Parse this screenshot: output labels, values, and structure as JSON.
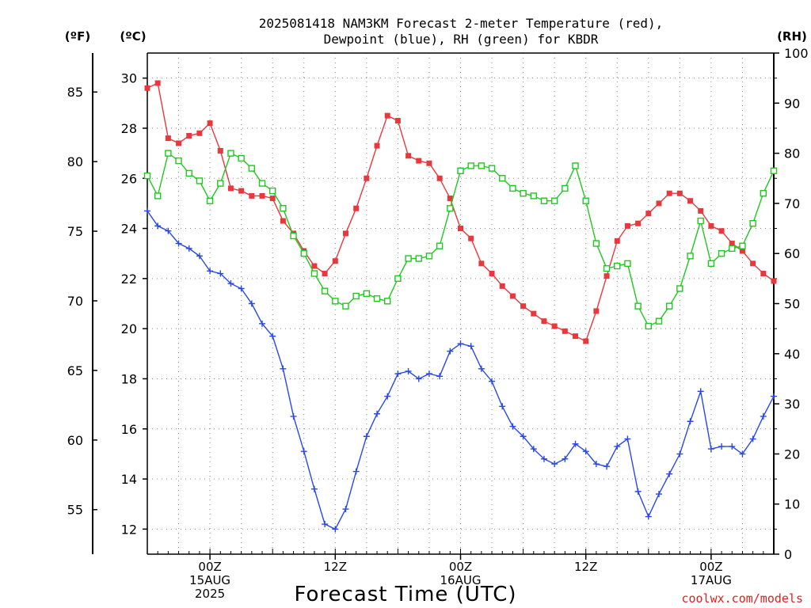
{
  "title": {
    "line1": "2025081418 NAM3KM Forecast 2-meter Temperature (red),",
    "line2": "Dewpoint (blue), RH (green) for KBDR"
  },
  "units": {
    "f": "(ºF)",
    "c": "(ºC)",
    "rh": "(RH)"
  },
  "xlabel": "Forecast Time (UTC)",
  "credit": "coolwx.com/models",
  "colors": {
    "temp": "#e8383c",
    "dew": "#2848e8",
    "rh": "#20c820",
    "grid": "#888888"
  },
  "chart_data": {
    "type": "line",
    "title": "2025081418 NAM3KM Forecast 2-meter Temperature (red), Dewpoint (blue), RH (green) for KBDR",
    "xlabel": "Forecast Time (UTC)",
    "x_units": "hours since 2025-08-14 18Z",
    "x": [
      0,
      1,
      2,
      3,
      4,
      5,
      6,
      7,
      8,
      9,
      10,
      11,
      12,
      13,
      14,
      15,
      16,
      17,
      18,
      19,
      20,
      21,
      22,
      23,
      24,
      25,
      26,
      27,
      28,
      29,
      30,
      31,
      32,
      33,
      34,
      35,
      36,
      37,
      38,
      39,
      40,
      41,
      42,
      43,
      44,
      45,
      46,
      47,
      48,
      49,
      50,
      51,
      52,
      53,
      54,
      55,
      56,
      57,
      58,
      59,
      60
    ],
    "xlim": [
      0,
      60
    ],
    "x_ticks": [
      {
        "hour": 6,
        "lines": [
          "00Z",
          "15AUG",
          "2025"
        ]
      },
      {
        "hour": 18,
        "lines": [
          "12Z"
        ]
      },
      {
        "hour": 30,
        "lines": [
          "00Z",
          "16AUG"
        ]
      },
      {
        "hour": 42,
        "lines": [
          "12Z"
        ]
      },
      {
        "hour": 54,
        "lines": [
          "00Z",
          "17AUG"
        ]
      }
    ],
    "left_axis": {
      "label": "(ºC)",
      "ylim": [
        11,
        31
      ],
      "ticks": [
        12,
        14,
        16,
        18,
        20,
        22,
        24,
        26,
        28,
        30
      ]
    },
    "far_left_axis": {
      "label": "(ºF)",
      "ticks": [
        55,
        60,
        65,
        70,
        75,
        80,
        85
      ]
    },
    "right_axis": {
      "label": "(RH)",
      "ylim": [
        0,
        100
      ],
      "ticks": [
        0,
        10,
        20,
        30,
        40,
        50,
        60,
        70,
        80,
        90,
        100
      ]
    },
    "series": [
      {
        "name": "2-meter Temperature",
        "axis": "left",
        "marker": "filled-square",
        "values": [
          29.6,
          29.8,
          27.6,
          27.4,
          27.7,
          27.8,
          28.2,
          27.1,
          25.6,
          25.5,
          25.3,
          25.3,
          25.2,
          24.3,
          23.8,
          23.1,
          22.5,
          22.2,
          22.7,
          23.8,
          24.8,
          26.0,
          27.3,
          28.5,
          28.3,
          26.9,
          26.7,
          26.6,
          26.0,
          25.2,
          24.0,
          23.6,
          22.6,
          22.2,
          21.7,
          21.3,
          20.9,
          20.6,
          20.3,
          20.1,
          19.9,
          19.7,
          19.5,
          20.7,
          22.1,
          23.5,
          24.1,
          24.2,
          24.6,
          25.0,
          25.4,
          25.4,
          25.1,
          24.7,
          24.1,
          23.9,
          23.4,
          23.1,
          22.6,
          22.2,
          21.9
        ]
      },
      {
        "name": "Dewpoint",
        "axis": "left",
        "marker": "plus",
        "values": [
          24.7,
          24.1,
          23.9,
          23.4,
          23.2,
          22.9,
          22.3,
          22.2,
          21.8,
          21.6,
          21.0,
          20.2,
          19.7,
          18.4,
          16.5,
          15.1,
          13.6,
          12.2,
          12.0,
          12.8,
          14.3,
          15.7,
          16.6,
          17.3,
          18.2,
          18.3,
          18.0,
          18.2,
          18.1,
          19.1,
          19.4,
          19.3,
          18.4,
          17.9,
          16.9,
          16.1,
          15.7,
          15.2,
          14.8,
          14.6,
          14.8,
          15.4,
          15.1,
          14.6,
          14.5,
          15.3,
          15.6,
          13.5,
          12.5,
          13.4,
          14.2,
          15.0,
          16.3,
          17.5,
          15.2,
          15.3,
          15.3,
          15.0,
          15.6,
          16.5,
          17.3
        ]
      },
      {
        "name": "RH",
        "axis": "right",
        "marker": "open-square",
        "values": [
          75.5,
          71.5,
          80.0,
          78.5,
          76.0,
          74.5,
          70.5,
          74.0,
          80.0,
          79.0,
          77.0,
          74.0,
          72.5,
          69.0,
          63.5,
          60.0,
          56.0,
          52.5,
          50.5,
          49.5,
          51.5,
          52.0,
          51.0,
          50.5,
          55.0,
          59.0,
          59.0,
          59.5,
          61.5,
          69.0,
          76.5,
          77.5,
          77.5,
          77.0,
          75.0,
          73.0,
          72.0,
          71.5,
          70.5,
          70.5,
          73.0,
          77.5,
          70.5,
          62.0,
          57.0,
          57.5,
          58.0,
          49.5,
          45.5,
          46.5,
          49.5,
          53.0,
          59.5,
          66.5,
          58.0,
          60.0,
          61.0,
          61.5,
          66.0,
          72.0,
          76.5
        ]
      }
    ]
  }
}
